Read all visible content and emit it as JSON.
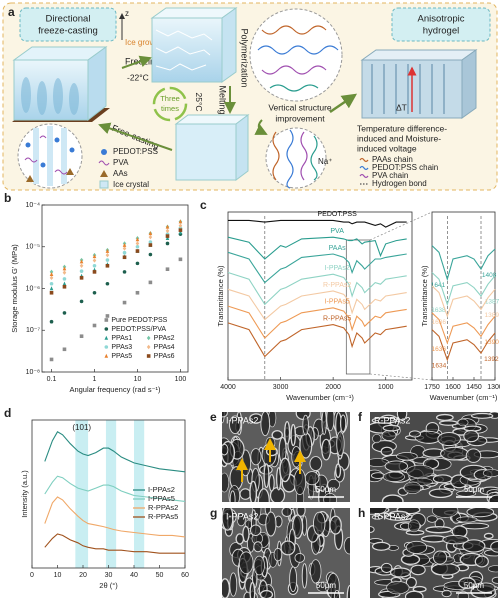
{
  "panel_a": {
    "label": "a",
    "left_title": [
      "Directional",
      "freeze-casting"
    ],
    "z_axis": "z",
    "ice_growing": "Ice growing",
    "freezing": "Freezing",
    "temp_freeze": "-22°C",
    "cycles": [
      "Three",
      "times"
    ],
    "temp_melt": "25°C",
    "melting": "Melting",
    "polymerization": "Polymerization",
    "free_casting": "Free-casting",
    "improvement": [
      "Vertical structure",
      "improvement"
    ],
    "ion": "Na⁺",
    "right_title": [
      "Anisotropic",
      "hydrogel"
    ],
    "delta_t": "ΔT",
    "voltage_caption": [
      "Temperature difference-",
      "induced and Moisture-",
      "induced voltage"
    ],
    "legend_left": [
      "PEDOT:PSS",
      "PVA",
      "AAs",
      "Ice crystal"
    ],
    "legend_right": [
      "PAAs chain",
      "PEDOT:PSS chain",
      "PVA chain",
      "Hydrogen bond"
    ]
  },
  "chart_data": [
    {
      "type": "scatter",
      "panel": "b",
      "x_label": "Angular frequency (rad s⁻¹)",
      "y_label": "Storage modulus G' (MPa)",
      "x_log": true,
      "y_log": true,
      "x": [
        0.1,
        0.2,
        0.5,
        1,
        2,
        5,
        10,
        20,
        50,
        100
      ],
      "xlim": [
        0.06,
        150
      ],
      "xticks": [
        0.1,
        1,
        10,
        100
      ],
      "ylim": [
        1e-08,
        0.0001
      ],
      "yticks": [
        {
          "value": 1e-08,
          "label": "10⁻⁸"
        },
        {
          "value": 1e-07,
          "label": "10⁻⁷"
        },
        {
          "value": 1e-06,
          "label": "10⁻⁶"
        },
        {
          "value": 1e-05,
          "label": "10⁻⁵"
        },
        {
          "value": 0.0001,
          "label": "10⁻⁴"
        }
      ],
      "legend": "lower-right",
      "series": [
        {
          "name": "Pure PEDOT:PSS",
          "color": "#8c8c8c",
          "marker": "square",
          "values": [
            2e-08,
            3.5e-08,
            7.2e-08,
            1.3e-07,
            2.2e-07,
            4.6e-07,
            7.9e-07,
            1.4e-06,
            2.9e-06,
            5e-06
          ]
        },
        {
          "name": "PEDOT:PSS/PVA",
          "color": "#1d5f4e",
          "marker": "circle",
          "values": [
            1.6e-07,
            2.6e-07,
            4.9e-07,
            7.9e-07,
            1.3e-06,
            2.5e-06,
            4e-06,
            6.5e-06,
            1.2e-05,
            2e-05
          ]
        },
        {
          "name": "PPAs1",
          "color": "#2a9d8f",
          "marker": "triangle",
          "values": [
            1e-06,
            1.3e-06,
            2e-06,
            2.8e-06,
            3.8e-06,
            5.8e-06,
            7.9e-06,
            1.1e-05,
            1.6e-05,
            2.2e-05
          ]
        },
        {
          "name": "PPAs2",
          "color": "#76c7a8",
          "marker": "diamond",
          "values": [
            2.5e-06,
            3.3e-06,
            4.8e-06,
            6.3e-06,
            8.3e-06,
            1.2e-05,
            1.6e-05,
            2.1e-05,
            3e-05,
            4e-05
          ]
        },
        {
          "name": "PPAs3",
          "color": "#8fd8d6",
          "marker": "circle",
          "values": [
            1.3e-06,
            1.7e-06,
            2.6e-06,
            3.5e-06,
            4.8e-06,
            7.2e-06,
            1e-05,
            1.3e-05,
            2e-05,
            2.8e-05
          ]
        },
        {
          "name": "PPAs4",
          "color": "#f2b98a",
          "marker": "diamond",
          "values": [
            1.8e-06,
            2.4e-06,
            3.5e-06,
            4.7e-06,
            6.3e-06,
            9.1e-06,
            1.2e-05,
            1.7e-05,
            2.4e-05,
            3.2e-05
          ]
        },
        {
          "name": "PPAs5",
          "color": "#e8812e",
          "marker": "triangle",
          "values": [
            2.2e-06,
            3e-06,
            4.4e-06,
            5.9e-06,
            7.9e-06,
            1.1e-05,
            1.5e-05,
            2.1e-05,
            3e-05,
            4e-05
          ]
        },
        {
          "name": "PPAs6",
          "color": "#8b4a1d",
          "marker": "square",
          "values": [
            7.9e-07,
            1.1e-06,
            1.8e-06,
            2.5e-06,
            3.5e-06,
            5.6e-06,
            7.9e-06,
            1.1e-05,
            1.8e-05,
            2.5e-05
          ]
        }
      ]
    },
    {
      "type": "line",
      "panel": "c",
      "x_label": "Wavenumber (cm⁻¹)",
      "y_label": "Transmittance (%)",
      "x": [
        4000,
        3600,
        3300,
        3000,
        2900,
        2600,
        2000,
        1800,
        1700,
        1640,
        1550,
        1450,
        1400,
        1200,
        1100,
        1000,
        800,
        600
      ],
      "xlim": [
        4000,
        500
      ],
      "xticks": [
        4000,
        3000,
        2000,
        1000
      ],
      "ylim": [
        0,
        100
      ],
      "legend": "inline",
      "marker_lines": [
        3300
      ],
      "series": [
        {
          "name": "PEDOT:PSS",
          "color": "#111111",
          "values": [
            95,
            95,
            94,
            95,
            95,
            95,
            95,
            94,
            94,
            93,
            94,
            94,
            94,
            92,
            93,
            91,
            94,
            94
          ]
        },
        {
          "name": "PVA",
          "color": "#2a9d8f",
          "values": [
            85,
            82,
            72,
            80,
            79,
            84,
            85,
            84,
            83,
            83,
            84,
            81,
            82,
            83,
            74,
            81,
            83,
            84
          ]
        },
        {
          "name": "PAAs",
          "color": "#3aa59a",
          "values": [
            76,
            72,
            58,
            66,
            67,
            73,
            75,
            73,
            70,
            64,
            71,
            68,
            66,
            72,
            72,
            73,
            74,
            75
          ]
        },
        {
          "name": "I-PPAs2",
          "color": "#8fd3c4",
          "values": [
            64,
            60,
            45,
            54,
            55,
            60,
            63,
            61,
            57,
            50,
            58,
            55,
            52,
            58,
            57,
            60,
            61,
            62
          ]
        },
        {
          "name": "R-PPAs2",
          "color": "#f3c9a3",
          "values": [
            54,
            50,
            36,
            44,
            45,
            50,
            53,
            51,
            47,
            40,
            48,
            45,
            42,
            48,
            47,
            50,
            51,
            52
          ]
        },
        {
          "name": "I-PPAs5",
          "color": "#ee9a55",
          "values": [
            44,
            40,
            25,
            34,
            35,
            40,
            43,
            41,
            37,
            30,
            38,
            35,
            32,
            38,
            37,
            40,
            41,
            42
          ]
        },
        {
          "name": "R-PPAs5",
          "color": "#c0652a",
          "values": [
            34,
            30,
            14,
            23,
            24,
            30,
            33,
            31,
            27,
            20,
            28,
            25,
            22,
            28,
            27,
            30,
            31,
            32
          ]
        }
      ]
    },
    {
      "type": "line",
      "inset": true,
      "x_label": "Wavenumber (cm⁻¹)",
      "y_label": "Transmittance (%)",
      "x": [
        1750,
        1700,
        1641,
        1600,
        1500,
        1450,
        1400,
        1350,
        1300
      ],
      "xlim": [
        1750,
        1300
      ],
      "xticks": [
        1750,
        1600,
        1450,
        1300
      ],
      "ylim": [
        0,
        100
      ],
      "marker_lines": [
        1640,
        1400
      ],
      "series": [
        {
          "color": "#3aa59a",
          "values": [
            80,
            76,
            60,
            72,
            74,
            72,
            66,
            74,
            78
          ],
          "peaks": [
            1641,
            1408
          ]
        },
        {
          "color": "#8fd3c4",
          "values": [
            64,
            60,
            45,
            56,
            58,
            55,
            50,
            57,
            62
          ],
          "peaks": [
            1638,
            1387
          ]
        },
        {
          "color": "#f3c9a3",
          "values": [
            56,
            52,
            38,
            48,
            50,
            47,
            42,
            49,
            54
          ],
          "peaks": [
            1636,
            1389
          ]
        },
        {
          "color": "#ee9a55",
          "values": [
            40,
            36,
            22,
            32,
            34,
            31,
            26,
            33,
            38
          ],
          "peaks": [
            1636,
            1390
          ]
        },
        {
          "color": "#c0652a",
          "values": [
            30,
            26,
            12,
            22,
            24,
            21,
            16,
            23,
            28
          ],
          "peaks": [
            1634,
            1392
          ]
        }
      ]
    },
    {
      "type": "line",
      "panel": "d",
      "x_label": "2θ (°)",
      "y_label": "Intensity (a.u.)",
      "x": [
        5,
        8,
        10,
        12,
        15,
        18,
        20,
        22,
        25,
        28,
        30,
        32,
        35,
        40,
        45,
        50,
        55,
        60
      ],
      "xlim": [
        0,
        60
      ],
      "xticks": [
        0,
        10,
        20,
        30,
        40,
        50,
        60
      ],
      "ylim": [
        0,
        100
      ],
      "bands": [
        [
          17,
          22
        ],
        [
          29,
          33
        ],
        [
          40,
          44
        ]
      ],
      "annotation": "(101)",
      "legend": "right",
      "series": [
        {
          "name": "I-PPAs2",
          "color": "#2a8c82",
          "values": [
            72,
            86,
            92,
            90,
            84,
            79,
            77,
            76,
            78,
            81,
            81,
            79,
            75,
            71,
            69,
            67,
            66,
            65
          ]
        },
        {
          "name": "I-PPAs5",
          "color": "#7fcfc0",
          "values": [
            50,
            58,
            62,
            61,
            57,
            54,
            53,
            52,
            54,
            56,
            56,
            55,
            52,
            49,
            48,
            47,
            46,
            45
          ]
        },
        {
          "name": "R-PPAs2",
          "color": "#f0a868",
          "values": [
            30,
            44,
            48,
            46,
            40,
            35,
            32,
            30,
            29,
            28,
            27,
            26,
            25,
            24,
            23,
            22,
            22,
            21
          ]
        },
        {
          "name": "R-PPAs5",
          "color": "#a0521d",
          "values": [
            14,
            20,
            23,
            22,
            19,
            17,
            15,
            14,
            13,
            13,
            12,
            12,
            12,
            11,
            11,
            10,
            10,
            10
          ]
        }
      ]
    }
  ],
  "sem_images": [
    {
      "label": "e",
      "title": "I-PPAs2",
      "scale_bar": "50μm"
    },
    {
      "label": "f",
      "title": "R-PPAs2",
      "scale_bar": "50μm"
    },
    {
      "label": "g",
      "title": "I-PPAs2",
      "scale_bar": "50μm"
    },
    {
      "label": "h",
      "title": "R-PPAs2",
      "scale_bar": "50μm"
    }
  ]
}
